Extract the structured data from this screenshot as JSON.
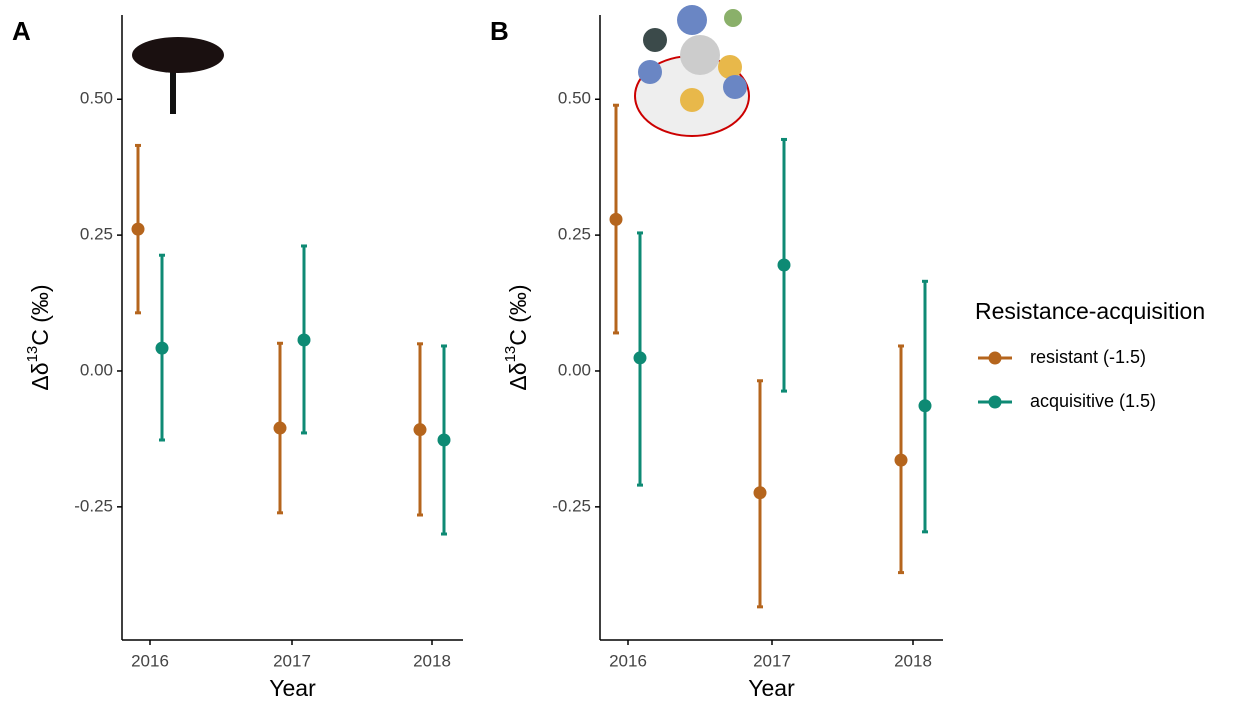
{
  "chart_data": [
    {
      "type": "errorbar",
      "panel_label": "A",
      "x_label": "Year",
      "y_label": "Δδ",
      "y_label_sup": "13",
      "y_label_suffix": "C (‰)",
      "categories": [
        "2016",
        "2017",
        "2018"
      ],
      "ylim": [
        -0.495,
        0.655
      ],
      "yticks": [
        {
          "value": 0.5,
          "label": "0.50"
        },
        0.25,
        {
          "value": 0,
          "label": "0.00"
        },
        -0.25
      ],
      "series": [
        {
          "color": "#b5651d",
          "values": [
            0.261,
            -0.105,
            -0.108
          ],
          "lower": [
            0.107,
            -0.261,
            -0.265
          ],
          "upper": [
            0.415,
            0.051,
            0.05
          ]
        },
        {
          "color": "#0e8a74",
          "values": [
            0.042,
            0.057,
            -0.127
          ],
          "lower": [
            -0.127,
            -0.114,
            -0.3
          ],
          "upper": [
            0.213,
            0.23,
            0.046
          ]
        }
      ]
    },
    {
      "type": "errorbar",
      "panel_label": "B",
      "x_label": "Year",
      "y_label": "Δδ",
      "y_label_sup": "13",
      "y_label_suffix": "C (‰)",
      "legend_title": "Resistance-acquisition",
      "categories": [
        "2016",
        "2017",
        "2018"
      ],
      "ylim": [
        -0.495,
        0.655
      ],
      "yticks": [
        {
          "value": 0.5,
          "label": "0.50"
        },
        0.25,
        {
          "value": 0,
          "label": "0.00"
        },
        -0.25
      ],
      "series": [
        {
          "name": "resistant (-1.5)",
          "color": "#b5651d",
          "values": [
            0.279,
            -0.224,
            -0.164
          ],
          "lower": [
            0.07,
            -0.434,
            -0.371
          ],
          "upper": [
            0.489,
            -0.018,
            0.046
          ]
        },
        {
          "name": "acquisitive (1.5)",
          "color": "#0e8a74",
          "values": [
            0.024,
            0.195,
            -0.064
          ],
          "lower": [
            -0.21,
            -0.037,
            -0.296
          ],
          "upper": [
            0.254,
            0.426,
            0.165
          ]
        }
      ]
    }
  ]
}
